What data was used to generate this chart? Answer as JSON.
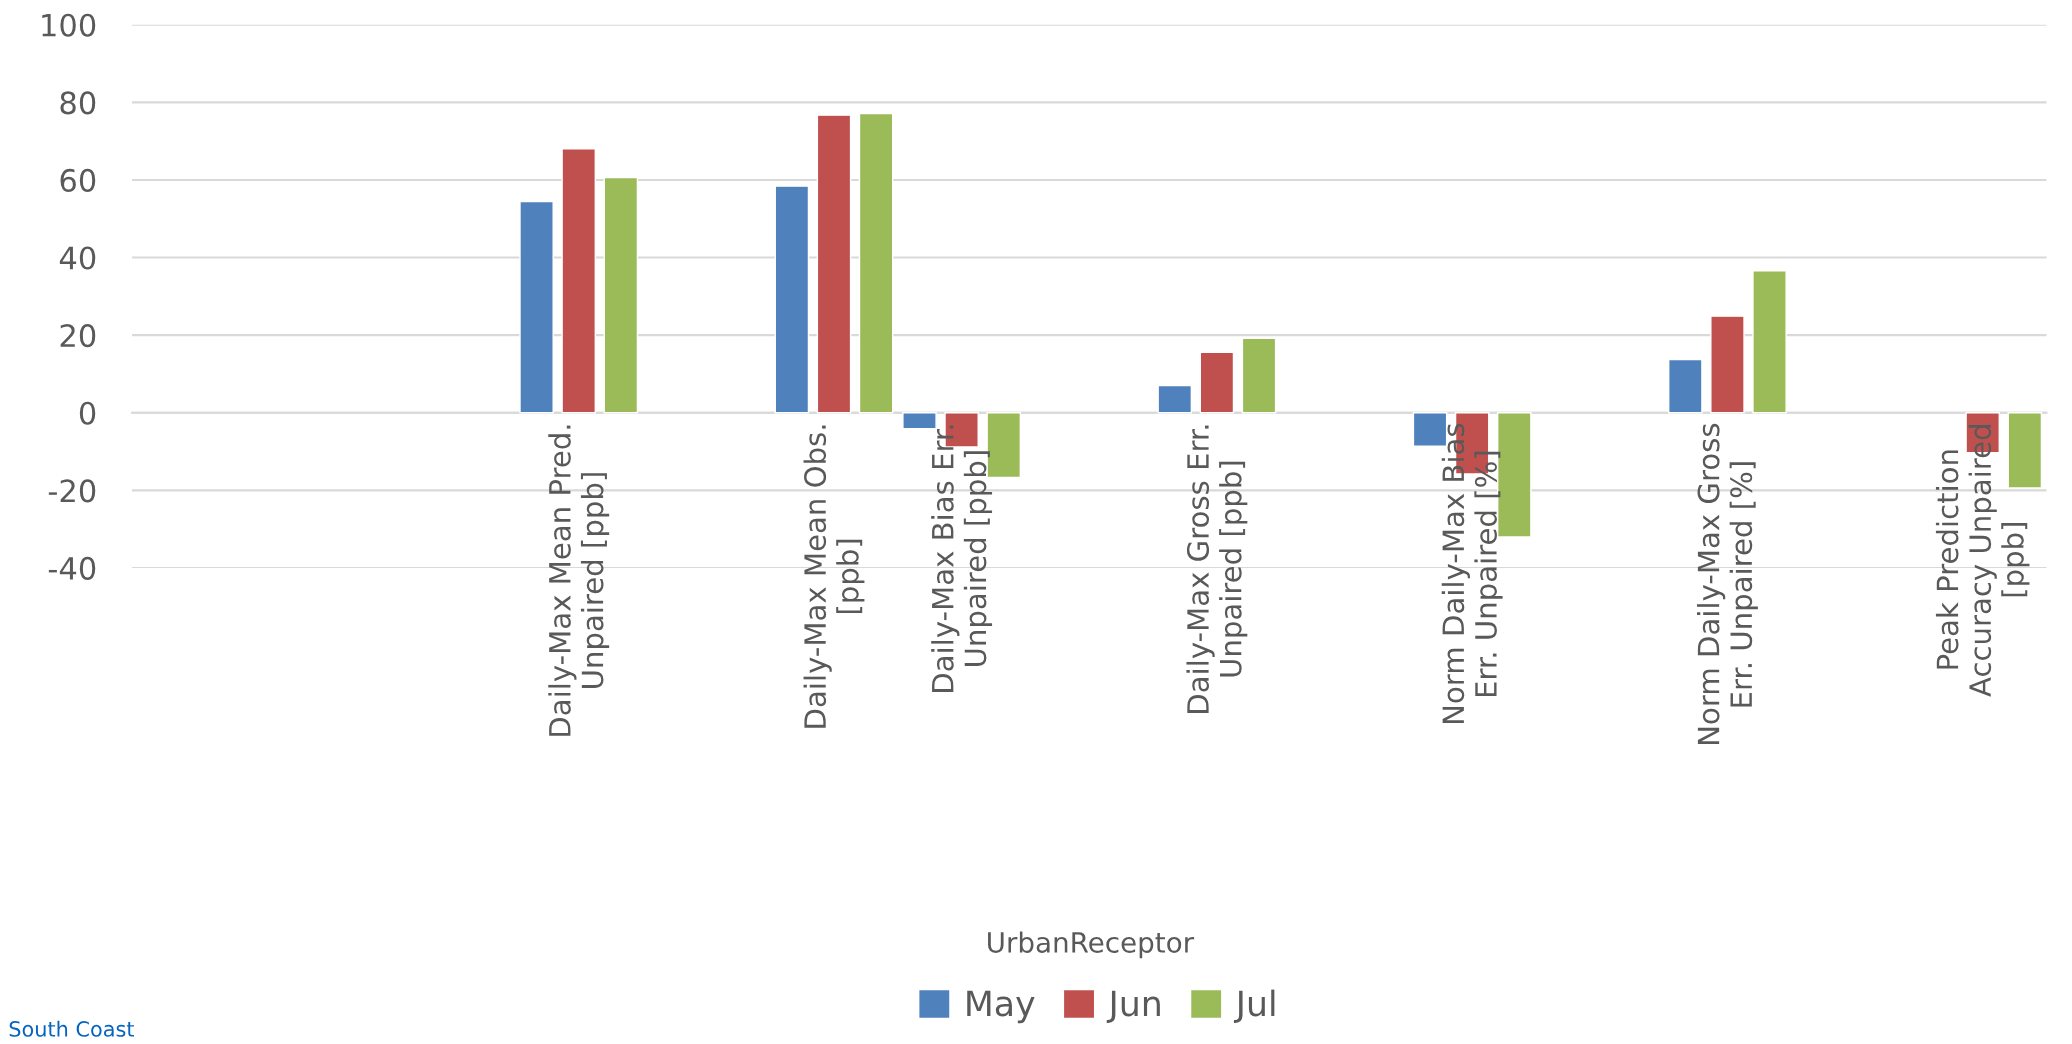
{
  "chart_data": {
    "type": "bar",
    "categories": [
      null,
      null,
      null,
      "Daily-Max Mean Pred.\nUnpaired [ppb]",
      null,
      "Daily-Max Mean Obs.\n[ppb]",
      "Daily-Max Bias Err.\nUnpaired [ppb]",
      null,
      "Daily-Max Gross Err.\nUnpaired [ppb]",
      null,
      "Norm Daily-Max Bias\nErr. Unpaired [%]",
      null,
      "Norm Daily-Max Gross\nErr. Unpaired [%]",
      null,
      "Peak Prediction\nAccuracy Unpaired\n[ppb]"
    ],
    "series": [
      {
        "name": "May",
        "color": "#4f81bd",
        "values": [
          null,
          null,
          null,
          54.4,
          null,
          58.4,
          -4.1,
          null,
          7.0,
          null,
          -8.6,
          null,
          13.7,
          null,
          null
        ]
      },
      {
        "name": "Jun",
        "color": "#c0504d",
        "values": [
          null,
          null,
          null,
          68.0,
          null,
          76.7,
          -8.8,
          null,
          15.6,
          null,
          -15.8,
          null,
          24.9,
          null,
          -10.3
        ]
      },
      {
        "name": "Jul",
        "color": "#9bbb59",
        "values": [
          null,
          null,
          null,
          60.6,
          null,
          77.1,
          -16.7,
          null,
          19.2,
          null,
          -32,
          null,
          36.6,
          null,
          -19.4
        ]
      }
    ],
    "ylim": [
      -40,
      100
    ],
    "yticks": [
      -40,
      -20,
      0,
      20,
      40,
      60,
      80,
      100
    ],
    "grid": "y",
    "legend": "bottom",
    "annotations": [
      "UrbanReceptor",
      "South Coast"
    ]
  }
}
